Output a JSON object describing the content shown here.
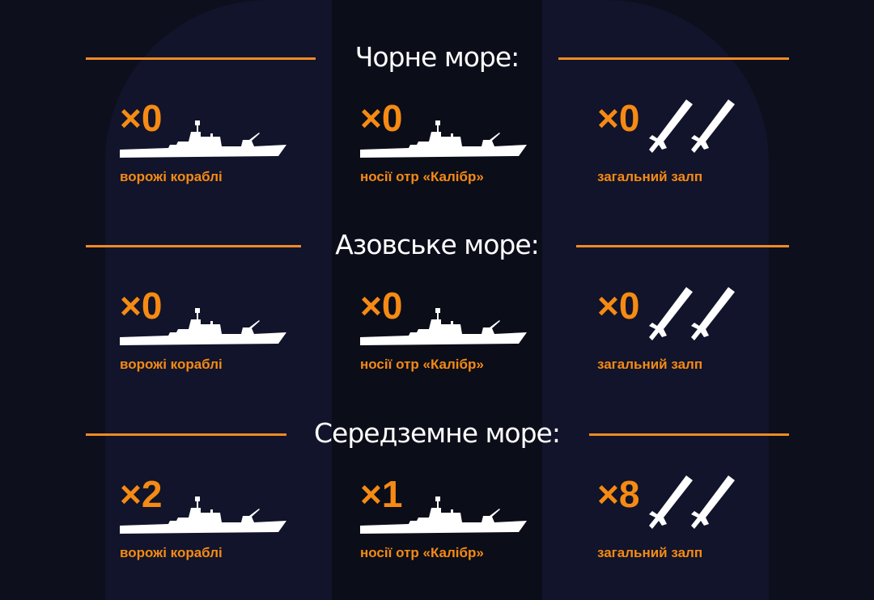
{
  "colors": {
    "background": "#0d0f1d",
    "accent": "#f58a14",
    "line": "#f08a24",
    "icon": "#ffffff"
  },
  "sections": [
    {
      "title": "Чорне море:",
      "items": [
        {
          "count": "×0",
          "label": "ворожі кораблі",
          "icon": "warship-icon"
        },
        {
          "count": "×0",
          "label": "носії отр «Калібр»",
          "icon": "warship-icon"
        },
        {
          "count": "×0",
          "label": "загальний залп",
          "icon": "missiles-icon"
        }
      ]
    },
    {
      "title": "Азовське море:",
      "items": [
        {
          "count": "×0",
          "label": "ворожі кораблі",
          "icon": "warship-icon"
        },
        {
          "count": "×0",
          "label": "носії отр «Калібр»",
          "icon": "warship-icon"
        },
        {
          "count": "×0",
          "label": "загальний залп",
          "icon": "missiles-icon"
        }
      ]
    },
    {
      "title": "Середземне море:",
      "items": [
        {
          "count": "×2",
          "label": "ворожі кораблі",
          "icon": "warship-icon"
        },
        {
          "count": "×1",
          "label": "носії отр «Калібр»",
          "icon": "warship-icon"
        },
        {
          "count": "×8",
          "label": "загальний залп",
          "icon": "missiles-icon"
        }
      ]
    }
  ]
}
